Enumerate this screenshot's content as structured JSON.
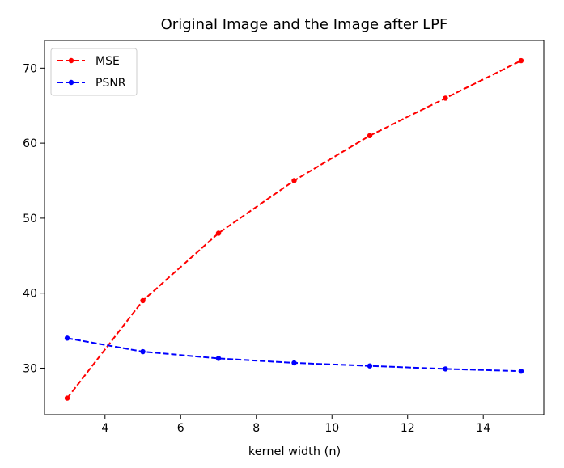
{
  "chart_data": {
    "type": "line",
    "title": "Original Image and the Image after LPF",
    "xlabel": "kernel width (n)",
    "ylabel": "",
    "x": [
      3,
      5,
      7,
      9,
      11,
      13,
      15
    ],
    "xlim": [
      2.4,
      15.6
    ],
    "ylim": [
      23.8,
      73.7
    ],
    "xticks": [
      4,
      6,
      8,
      10,
      12,
      14
    ],
    "yticks": [
      30,
      40,
      50,
      60,
      70
    ],
    "grid": false,
    "legend_position": "upper-left",
    "series": [
      {
        "name": "MSE",
        "values": [
          26,
          39,
          48,
          55,
          61,
          66,
          71
        ],
        "color": "#ff0000",
        "line_style": "dashed",
        "marker": "circle"
      },
      {
        "name": "PSNR",
        "values": [
          34,
          32.2,
          31.3,
          30.7,
          30.3,
          29.9,
          29.6
        ],
        "color": "#0000ff",
        "line_style": "dashed",
        "marker": "circle"
      }
    ]
  }
}
